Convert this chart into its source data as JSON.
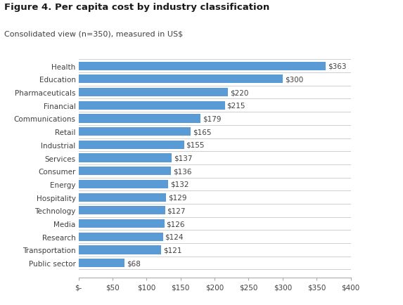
{
  "title": "Figure 4. Per capita cost by industry classification",
  "subtitle": "Consolidated view (n=350), measured in US$",
  "categories": [
    "Public sector",
    "Transportation",
    "Research",
    "Media",
    "Technology",
    "Hospitality",
    "Energy",
    "Consumer",
    "Services",
    "Industrial",
    "Retail",
    "Communications",
    "Financial",
    "Pharmaceuticals",
    "Education",
    "Health"
  ],
  "values": [
    68,
    121,
    124,
    126,
    127,
    129,
    132,
    136,
    137,
    155,
    165,
    179,
    215,
    220,
    300,
    363
  ],
  "bar_color": "#5b9bd5",
  "label_color": "#404040",
  "title_color": "#1a1a1a",
  "subtitle_color": "#404040",
  "bg_color": "#ffffff",
  "separator_color": "#c8c8c8",
  "spine_color": "#aaaaaa",
  "xlim": [
    0,
    400
  ],
  "xticks": [
    0,
    50,
    100,
    150,
    200,
    250,
    300,
    350,
    400
  ],
  "xtick_labels": [
    "$-",
    "$50",
    "$100",
    "$150",
    "$200",
    "$250",
    "$300",
    "$350",
    "$400"
  ],
  "bar_height": 0.65,
  "figsize": [
    5.73,
    4.35
  ],
  "dpi": 100,
  "title_fontsize": 9.5,
  "subtitle_fontsize": 8,
  "tick_fontsize": 7.5,
  "label_fontsize": 7.5,
  "value_fontsize": 7.5
}
